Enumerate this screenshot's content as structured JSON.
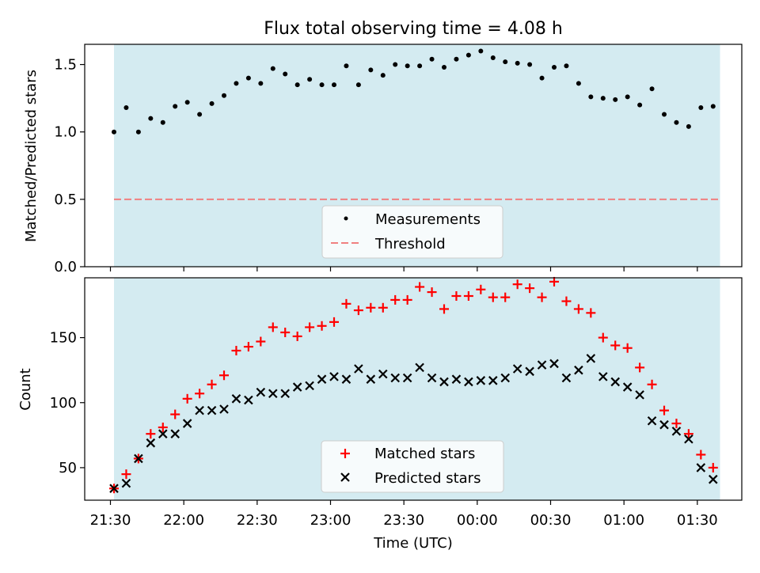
{
  "title": "Flux total observing time = 4.08 h",
  "x_axis": {
    "label": "Time (UTC)",
    "start": "21:30",
    "end": "01:38",
    "ticks": [
      "21:30",
      "22:00",
      "22:30",
      "23:00",
      "23:30",
      "00:00",
      "00:30",
      "01:00",
      "01:30"
    ]
  },
  "colors": {
    "observing_window": "#d4ebf1",
    "measurements": "#000000",
    "threshold": "#f08080",
    "matched": "#ff0000",
    "predicted": "#000000"
  },
  "chart_data": [
    {
      "type": "scatter",
      "ylabel": "Matched/Predicted stars",
      "ylim": [
        0,
        1.65
      ],
      "yticks": [
        "0.0",
        "0.5",
        "1.0",
        "1.5"
      ],
      "observing_window": [
        "21:30",
        "01:38"
      ],
      "threshold": 0.5,
      "legend": {
        "placement": "lower-center",
        "entries": [
          "Measurements",
          "Threshold"
        ]
      },
      "series": [
        {
          "name": "Measurements",
          "marker": "dot",
          "x": [
            "21:30",
            "21:35",
            "21:40",
            "21:45",
            "21:50",
            "21:55",
            "22:00",
            "22:05",
            "22:10",
            "22:15",
            "22:20",
            "22:25",
            "22:30",
            "22:35",
            "22:40",
            "22:45",
            "22:50",
            "22:55",
            "23:00",
            "23:05",
            "23:10",
            "23:15",
            "23:20",
            "23:25",
            "23:30",
            "23:35",
            "23:40",
            "23:45",
            "23:50",
            "23:55",
            "00:00",
            "00:05",
            "00:10",
            "00:15",
            "00:20",
            "00:25",
            "00:30",
            "00:35",
            "00:40",
            "00:45",
            "00:50",
            "00:55",
            "01:00",
            "01:05",
            "01:10",
            "01:15",
            "01:20",
            "01:25",
            "01:30",
            "01:35"
          ],
          "y": [
            1.0,
            1.18,
            1.0,
            1.1,
            1.07,
            1.19,
            1.22,
            1.13,
            1.21,
            1.27,
            1.36,
            1.4,
            1.36,
            1.47,
            1.43,
            1.35,
            1.39,
            1.35,
            1.35,
            1.49,
            1.35,
            1.46,
            1.42,
            1.5,
            1.49,
            1.49,
            1.54,
            1.48,
            1.54,
            1.57,
            1.6,
            1.55,
            1.52,
            1.51,
            1.5,
            1.4,
            1.48,
            1.49,
            1.36,
            1.26,
            1.25,
            1.24,
            1.26,
            1.2,
            1.32,
            1.13,
            1.07,
            1.04,
            1.18,
            1.19
          ]
        }
      ]
    },
    {
      "type": "scatter",
      "ylabel": "Count",
      "ylim": [
        25,
        196
      ],
      "yticks": [
        "50",
        "100",
        "150"
      ],
      "observing_window": [
        "21:30",
        "01:38"
      ],
      "legend": {
        "placement": "lower-center",
        "entries": [
          "Matched stars",
          "Predicted stars"
        ]
      },
      "series": [
        {
          "name": "Matched stars",
          "marker": "plus",
          "x": [
            "21:30",
            "21:35",
            "21:40",
            "21:45",
            "21:50",
            "21:55",
            "22:00",
            "22:05",
            "22:10",
            "22:15",
            "22:20",
            "22:25",
            "22:30",
            "22:35",
            "22:40",
            "22:45",
            "22:50",
            "22:55",
            "23:00",
            "23:05",
            "23:10",
            "23:15",
            "23:20",
            "23:25",
            "23:30",
            "23:35",
            "23:40",
            "23:45",
            "23:50",
            "23:55",
            "00:00",
            "00:05",
            "00:10",
            "00:15",
            "00:20",
            "00:25",
            "00:30",
            "00:35",
            "00:40",
            "00:45",
            "00:50",
            "00:55",
            "01:00",
            "01:05",
            "01:10",
            "01:15",
            "01:20",
            "01:25",
            "01:30",
            "01:35"
          ],
          "y": [
            34,
            45,
            57,
            76,
            81,
            91,
            103,
            107,
            114,
            121,
            140,
            143,
            147,
            158,
            154,
            151,
            158,
            159,
            162,
            176,
            171,
            173,
            173,
            179,
            179,
            189,
            185,
            172,
            182,
            182,
            187,
            181,
            181,
            191,
            188,
            181,
            193,
            178,
            172,
            169,
            150,
            144,
            142,
            127,
            114,
            94,
            84,
            76,
            60,
            50
          ]
        },
        {
          "name": "Predicted stars",
          "marker": "x",
          "x": [
            "21:30",
            "21:35",
            "21:40",
            "21:45",
            "21:50",
            "21:55",
            "22:00",
            "22:05",
            "22:10",
            "22:15",
            "22:20",
            "22:25",
            "22:30",
            "22:35",
            "22:40",
            "22:45",
            "22:50",
            "22:55",
            "23:00",
            "23:05",
            "23:10",
            "23:15",
            "23:20",
            "23:25",
            "23:30",
            "23:35",
            "23:40",
            "23:45",
            "23:50",
            "23:55",
            "00:00",
            "00:05",
            "00:10",
            "00:15",
            "00:20",
            "00:25",
            "00:30",
            "00:35",
            "00:40",
            "00:45",
            "00:50",
            "00:55",
            "01:00",
            "01:05",
            "01:10",
            "01:15",
            "01:20",
            "01:25",
            "01:30",
            "01:35"
          ],
          "y": [
            34,
            38,
            57,
            69,
            76,
            76,
            84,
            94,
            94,
            95,
            103,
            102,
            108,
            107,
            107,
            112,
            113,
            118,
            120,
            118,
            126,
            118,
            122,
            119,
            119,
            127,
            119,
            116,
            118,
            116,
            117,
            117,
            119,
            126,
            124,
            129,
            130,
            119,
            125,
            134,
            120,
            116,
            112,
            106,
            86,
            83,
            78,
            72,
            50,
            41
          ]
        }
      ]
    }
  ]
}
